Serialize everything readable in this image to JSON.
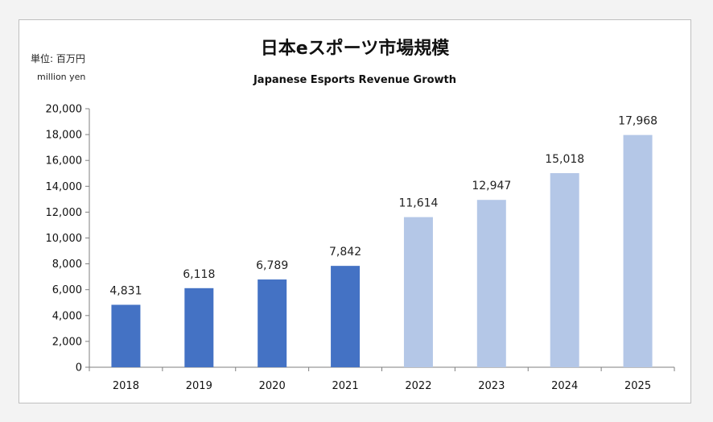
{
  "chart_data": {
    "type": "bar",
    "title": "日本eスポーツ市場規模",
    "subtitle": "Japanese Esports Revenue Growth",
    "unit_label_ja": "単位: 百万円",
    "unit_label_en": "million yen",
    "categories": [
      "2018",
      "2019",
      "2020",
      "2021",
      "2022",
      "2023",
      "2024",
      "2025"
    ],
    "values": [
      4831,
      6118,
      6789,
      7842,
      11614,
      12947,
      15018,
      17968
    ],
    "value_labels": [
      "4,831",
      "6,118",
      "6,789",
      "7,842",
      "11,614",
      "12,947",
      "15,018",
      "17,968"
    ],
    "bar_colors": [
      "#4472c4",
      "#4472c4",
      "#4472c4",
      "#4472c4",
      "#b4c7e7",
      "#b4c7e7",
      "#b4c7e7",
      "#b4c7e7"
    ],
    "ylim": [
      0,
      20000
    ],
    "yticks": [
      0,
      2000,
      4000,
      6000,
      8000,
      10000,
      12000,
      14000,
      16000,
      18000,
      20000
    ],
    "ytick_labels": [
      "0",
      "2,000",
      "4,000",
      "6,000",
      "8,000",
      "10,000",
      "12,000",
      "14,000",
      "16,000",
      "18,000",
      "20,000"
    ],
    "grid": false,
    "legend": "none"
  }
}
